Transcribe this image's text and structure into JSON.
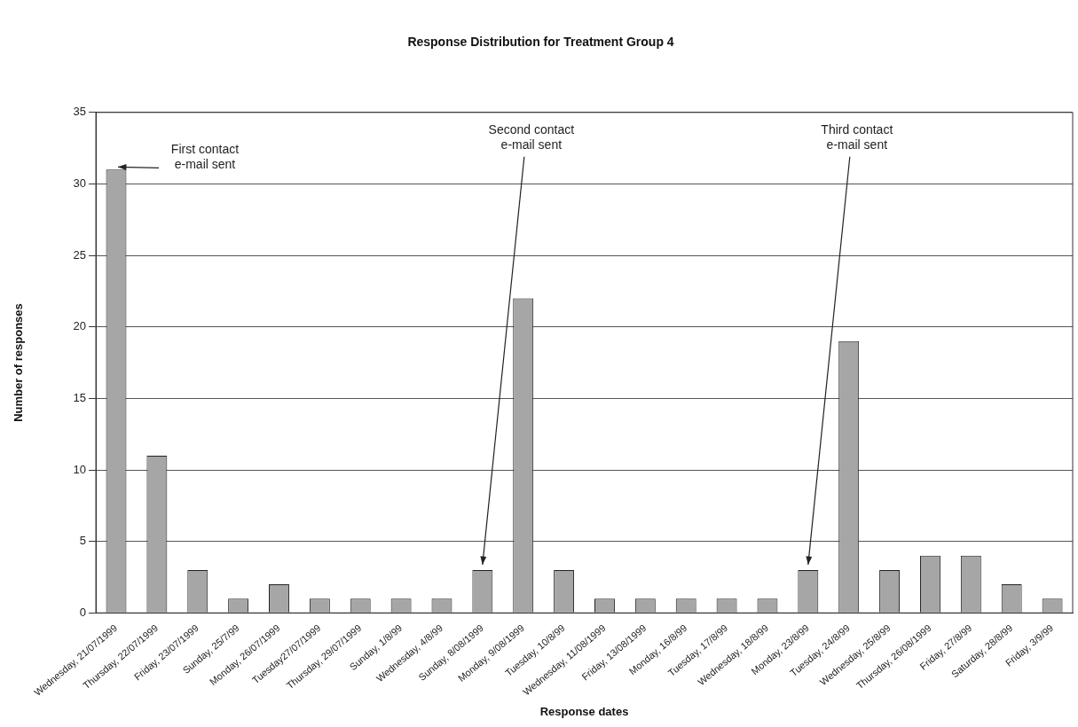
{
  "chart_data": {
    "type": "bar",
    "title": "Response Distribution for Treatment Group 4",
    "xlabel": "Response dates",
    "ylabel": "Number of responses",
    "categories": [
      "Wednesday, 21/07/1999",
      "Thursday, 22/07/1999",
      "Friday, 23/07/1999",
      "Sunday, 25/7/99",
      "Monday, 26/07/1999",
      "Tuesday27/07/1999",
      "Thursday, 29/07/1999",
      "Sunday, 1/8/99",
      "Wednesday, 4/8/99",
      "Sunday, 8/08/1999",
      "Monday, 9/08/1999",
      "Tuesday, 10/8/99",
      "Wednesday, 11/08/1999",
      "Friday, 13/08/1999",
      "Monday, 16/8/99",
      "Tuesday, 17/8/99",
      "Wednesday, 18/8/99",
      "Monday, 23/8/99",
      "Tuesday, 24/8/99",
      "Wednesday, 25/8/99",
      "Thursday, 26/08/1999",
      "Friday, 27/8/99",
      "Saturday, 28/8/99",
      "Friday, 3/9/99"
    ],
    "values": [
      31,
      11,
      3,
      1,
      2,
      1,
      1,
      1,
      1,
      3,
      22,
      3,
      1,
      1,
      1,
      1,
      1,
      3,
      19,
      3,
      4,
      4,
      2,
      1
    ],
    "color": "#a6a6a6",
    "ylim": [
      0,
      35
    ],
    "yticks": [
      0,
      5,
      10,
      15,
      20,
      25,
      30,
      35
    ],
    "grid": "y",
    "legend": false,
    "annotations": [
      {
        "text": "First contact\ne-mail sent",
        "x": "Wednesday, 21/07/1999",
        "y": 31
      },
      {
        "text": "Second contact\ne-mail sent",
        "x": "Sunday, 8/08/1999",
        "y": 3
      },
      {
        "text": "Third contact\ne-mail sent",
        "x": "Monday, 23/8/99",
        "y": 3
      }
    ]
  }
}
